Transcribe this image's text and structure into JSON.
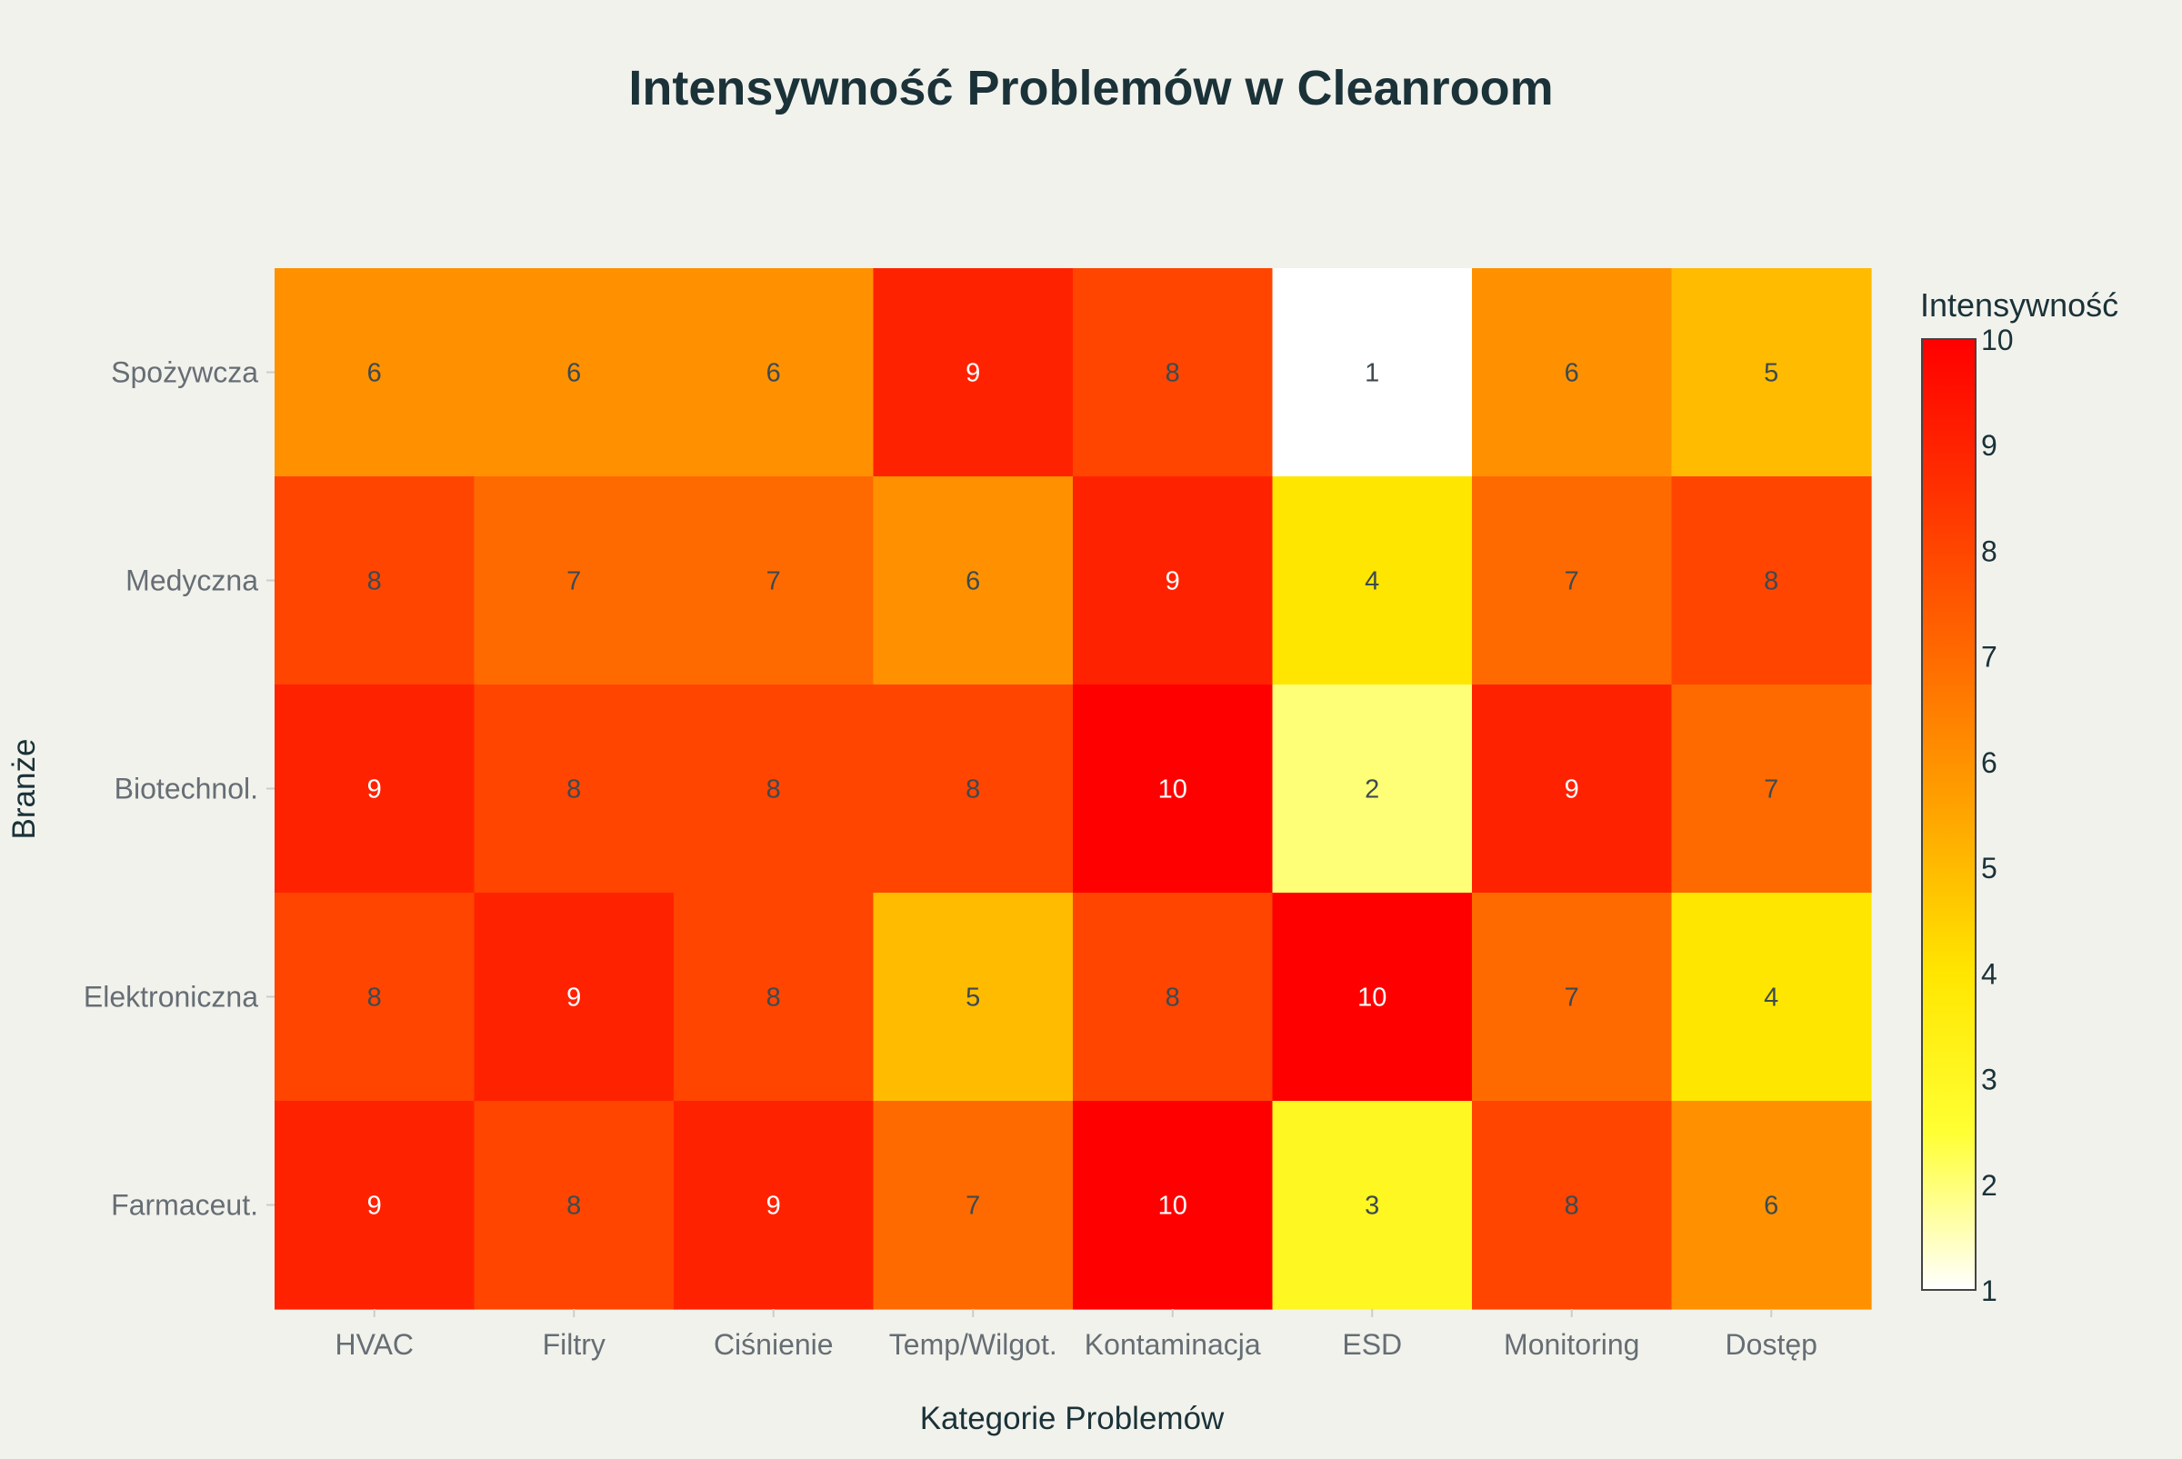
{
  "chart_data": {
    "type": "heatmap",
    "title": "Intensywność Problemów w Cleanroom",
    "xlabel": "Kategorie Problemów",
    "ylabel": "Branże",
    "x_categories": [
      "HVAC",
      "Filtry",
      "Ciśnienie",
      "Temp/Wilgot.",
      "Kontaminacja",
      "ESD",
      "Monitoring",
      "Dostęp"
    ],
    "y_categories": [
      "Spożywcza",
      "Medyczna",
      "Biotechnol.",
      "Elektroniczna",
      "Farmaceut."
    ],
    "values": [
      [
        6,
        6,
        6,
        9,
        8,
        1,
        6,
        5
      ],
      [
        8,
        7,
        7,
        6,
        9,
        4,
        7,
        8
      ],
      [
        9,
        8,
        8,
        8,
        10,
        2,
        9,
        7
      ],
      [
        8,
        9,
        8,
        5,
        8,
        10,
        7,
        4
      ],
      [
        9,
        8,
        9,
        7,
        10,
        3,
        8,
        6
      ]
    ],
    "zmin": 1,
    "zmax": 10,
    "colorbar": {
      "title": "Intensywność",
      "ticks": [
        1,
        2,
        3,
        4,
        5,
        6,
        7,
        8,
        9,
        10
      ]
    },
    "colorscale": [
      "#ffffff",
      "#ffff33",
      "#ffe600",
      "#ffa500",
      "#ff6a00",
      "#ff3300",
      "#ff0000"
    ],
    "text_color_dark": "#3d4a50",
    "text_color_light": "#ffffff",
    "title_color": "#1a3238",
    "tick_label_color": "#666e74",
    "background": "#f2f2ed"
  }
}
